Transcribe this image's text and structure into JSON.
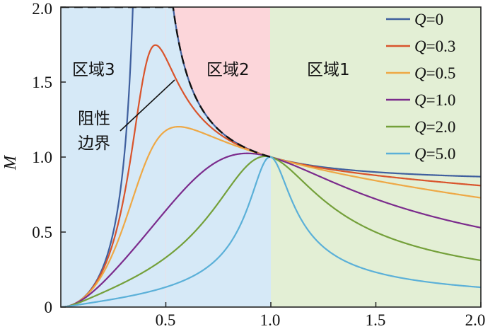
{
  "chart_data": {
    "type": "line",
    "title": "",
    "xlabel": "",
    "ylabel": "M",
    "xlim": [
      0,
      2.0
    ],
    "ylim": [
      0,
      2.0
    ],
    "xticks": [
      "0.5",
      "1.0",
      "1.5",
      "2.0"
    ],
    "yticks": [
      "0",
      "0.5",
      "1.0",
      "1.5",
      "2.0"
    ],
    "grid": false,
    "legend_position": "top-right",
    "regions": [
      {
        "label": "区域3",
        "x_range": [
          0,
          0.5
        ],
        "color": "#d6e9f7"
      },
      {
        "label": "区域2",
        "x_range": [
          0.5,
          1.0
        ],
        "color": "#fcd6da"
      },
      {
        "label": "区域1",
        "x_range": [
          1.0,
          2.0
        ],
        "color": "#e3efd5"
      }
    ],
    "annotation": {
      "line1": "阻性",
      "line2": "边界"
    },
    "series": [
      {
        "name": "Q=0",
        "q": 0,
        "color": "#3f5f9e"
      },
      {
        "name": "Q=0.3",
        "q": 0.3,
        "color": "#d9542c"
      },
      {
        "name": "Q=0.5",
        "q": 0.5,
        "color": "#eea845"
      },
      {
        "name": "Q=1.0",
        "q": 1.0,
        "color": "#7b2b8c"
      },
      {
        "name": "Q=2.0",
        "q": 2.0,
        "color": "#74a03a"
      },
      {
        "name": "Q=5.0",
        "q": 5.0,
        "color": "#5bb0d8"
      }
    ],
    "legend": [
      {
        "q": "Q",
        "val": "=0"
      },
      {
        "q": "Q",
        "val": "=0.3"
      },
      {
        "q": "Q",
        "val": "=0.5"
      },
      {
        "q": "Q",
        "val": "=1.0"
      },
      {
        "q": "Q",
        "val": "=2.0"
      },
      {
        "q": "Q",
        "val": "=5.0"
      }
    ]
  }
}
